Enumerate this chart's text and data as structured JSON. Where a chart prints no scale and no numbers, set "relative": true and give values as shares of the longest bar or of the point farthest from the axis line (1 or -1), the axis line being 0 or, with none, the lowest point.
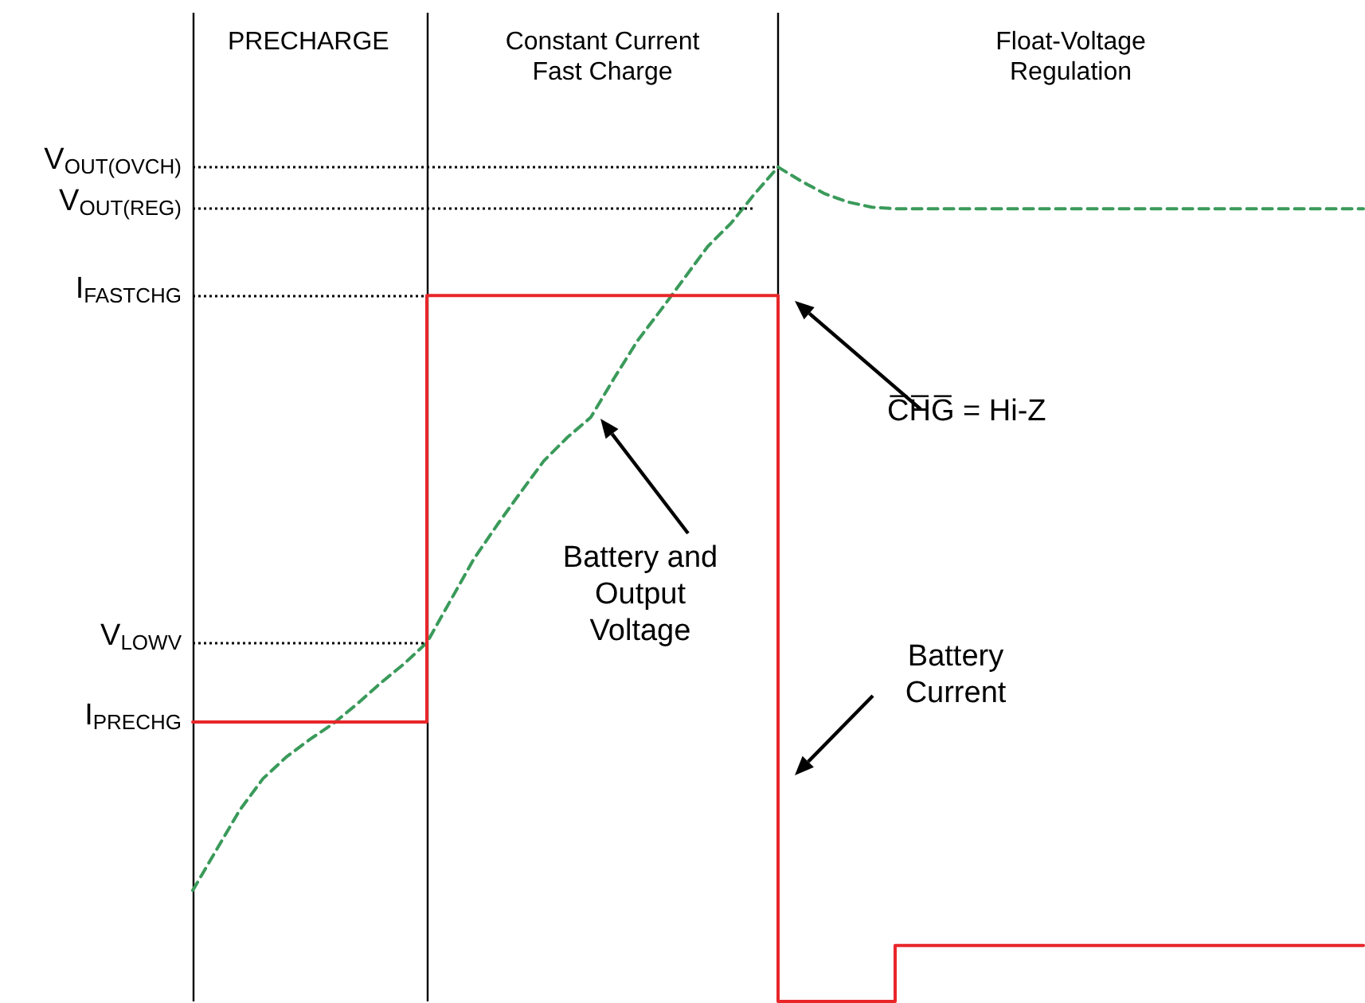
{
  "chart_data": {
    "type": "line",
    "relative": true,
    "grid": "x",
    "categories": [
      null,
      null,
      null,
      null,
      null,
      null,
      null,
      null,
      null,
      null,
      null,
      null,
      null,
      null,
      null,
      null,
      null,
      null,
      null,
      null,
      null,
      null,
      null,
      null,
      null,
      null,
      null,
      null,
      null,
      null,
      null,
      null,
      null,
      null,
      null,
      null,
      null,
      null,
      null,
      null,
      null,
      null,
      null,
      null,
      null,
      null,
      null,
      null,
      null,
      null,
      null
    ],
    "series": [
      {
        "color": "#3a9a5a",
        "line_style": "dashed",
        "marker": "none",
        "values": [
          0.133,
          0.181,
          0.229,
          0.267,
          0.293,
          0.314,
          0.333,
          0.356,
          0.381,
          0.404,
          0.43,
          0.48,
          0.53,
          0.571,
          0.61,
          0.648,
          0.676,
          0.7,
          0.747,
          0.792,
          0.829,
          0.867,
          0.905,
          0.933,
          0.968,
          1,
          0.983,
          0.968,
          0.958,
          0.952,
          0.95,
          0.95,
          0.95,
          0.95,
          0.95,
          0.95,
          0.95,
          0.95,
          0.95,
          0.95,
          0.95,
          0.95,
          0.95,
          0.95,
          0.95,
          0.95,
          0.95,
          0.95,
          0.95,
          0.95,
          0.95
        ]
      },
      {
        "type": "step",
        "color": "#e8262a",
        "line_style": "solid",
        "marker": "none",
        "values": [
          0.335,
          0.335,
          0.335,
          0.335,
          0.335,
          0.335,
          0.335,
          0.335,
          0.335,
          0.335,
          0.846,
          0.846,
          0.846,
          0.846,
          0.846,
          0.846,
          0.846,
          0.846,
          0.846,
          0.846,
          0.846,
          0.846,
          0.846,
          0.846,
          0.846,
          0,
          0,
          0,
          0,
          0,
          0.067,
          0.067,
          0.067,
          0.067,
          0.067,
          0.067,
          0.067,
          0.067,
          0.067,
          0.067,
          0.067,
          0.067,
          0.067,
          0.067,
          0.067,
          0.067,
          0.067,
          0.067,
          0.067,
          0.067,
          0.067
        ]
      }
    ],
    "ref_lines": [
      {
        "axis": "y",
        "value": 1,
        "label": "V$_{OUT(OVCH)}$",
        "line_style": "dotted"
      },
      {
        "axis": "y",
        "value": 0.95,
        "label": "V$_{OUT(REG)}$",
        "line_style": "dotted"
      },
      {
        "axis": "y",
        "value": 0.846,
        "label": "I$_{FASTCHG}$",
        "line_style": "dotted"
      },
      {
        "axis": "y",
        "value": 0.43,
        "label": "V$_{LOWV}$",
        "line_style": "dotted"
      }
    ],
    "annotations": [
      "PRECHARGE",
      "Constant Current\nFast Charge",
      "Float-Voltage\nRegulation",
      "C̅H̅G̅ = Hi-Z",
      "Battery and\nOutput\nVoltage",
      "Battery\nCurrent",
      "I$_{PRECHG}$"
    ]
  }
}
